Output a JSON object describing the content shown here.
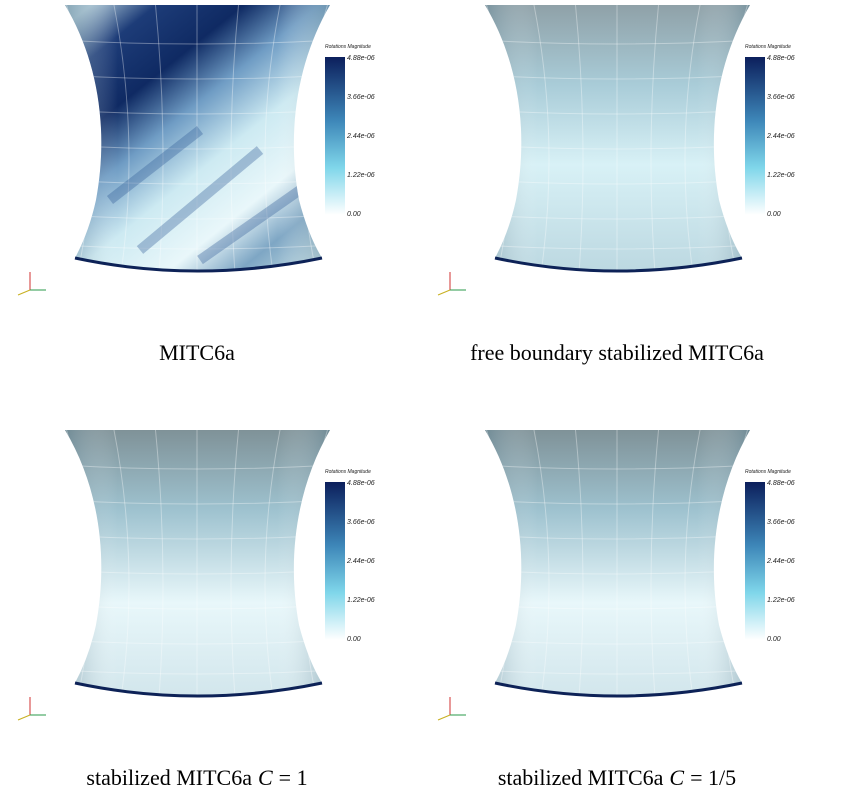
{
  "panels": [
    {
      "caption": {
        "text": "MITC6a"
      },
      "colorbar": {
        "title": "Rotations Magnitude",
        "ticks": [
          "4.88e-06",
          "3.66e-06",
          "2.44e-06",
          "1.22e-06",
          "0.00"
        ]
      }
    },
    {
      "caption": {
        "text": "free boundary stabilized MITC6a"
      },
      "colorbar": {
        "title": "Rotations Magnitude",
        "ticks": [
          "4.88e-06",
          "3.66e-06",
          "2.44e-06",
          "1.22e-06",
          "0.00"
        ]
      }
    },
    {
      "caption": {
        "text": "stabilized MITC6a",
        "math_var": "C",
        "math_rest": "= 1"
      },
      "colorbar": {
        "title": "Rotations Magnitude",
        "ticks": [
          "4.88e-06",
          "3.66e-06",
          "2.44e-06",
          "1.22e-06",
          "0.00"
        ]
      }
    },
    {
      "caption": {
        "text": "stabilized MITC6a",
        "math_var": "C",
        "math_rest": "= 1/5"
      },
      "colorbar": {
        "title": "Rotations Magnitude",
        "ticks": [
          "4.88e-06",
          "3.66e-06",
          "2.44e-06",
          "1.22e-06",
          "0.00"
        ]
      }
    }
  ]
}
